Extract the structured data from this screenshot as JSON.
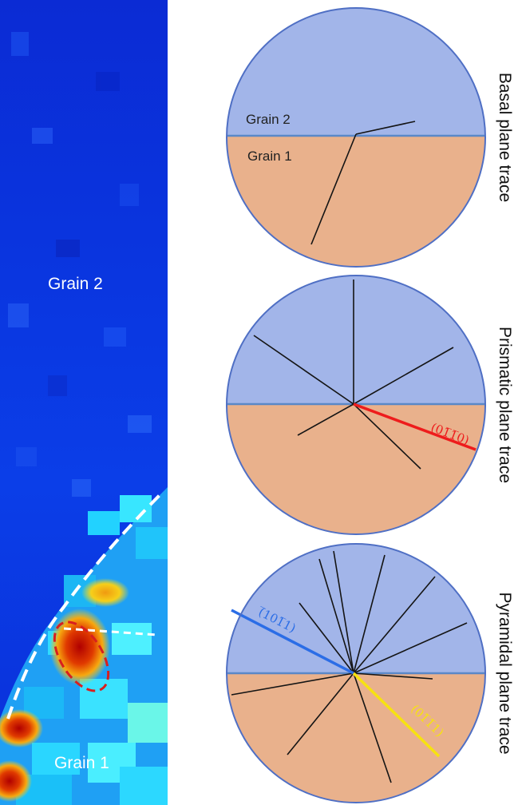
{
  "map_panel": {
    "grain2_label": "Grain 2",
    "grain1_label": "Grain 1",
    "colors": {
      "cold": "#0a2fd8",
      "mid": "#00d8ff",
      "warm": "#f4c012",
      "hot": "#c80000",
      "boundary": "#ffffff",
      "highlight_ellipse": "#d81f1f"
    }
  },
  "circles": [
    {
      "name": "basal",
      "side_label": "Basal plane trace",
      "grain2_label": "Grain 2",
      "grain1_label": "Grain 1",
      "highlighted_traces": []
    },
    {
      "name": "prismatic",
      "side_label": "Prismatic plane trace",
      "highlighted_traces": [
        {
          "label": "(01̅1̅0)",
          "color": "#ee1c1c"
        }
      ]
    },
    {
      "name": "pyramidal",
      "side_label": "Pyramidal plane trace",
      "highlighted_traces": [
        {
          "label": "(̅101̅1)",
          "color": "#2b6de6"
        },
        {
          "label": "(01̅1̅1)",
          "color": "#f7e210"
        }
      ]
    }
  ],
  "colors": {
    "grain2_fill": "#a2b5e9",
    "grain1_fill": "#e9b18c",
    "circle_edge": "#4f6fc4",
    "trace_line": "#141414"
  }
}
